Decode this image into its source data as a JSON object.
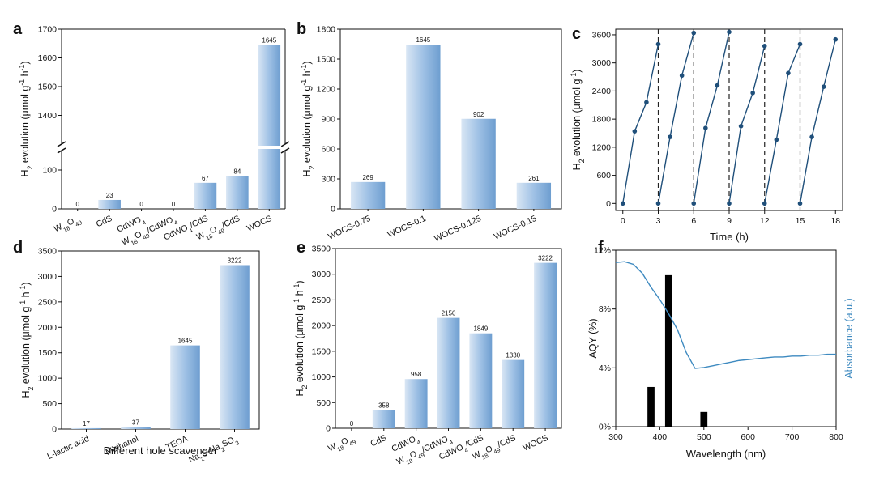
{
  "colors": {
    "bar_light": "#d9e6f4",
    "bar_mid": "#9fc1e5",
    "bar_dark": "#6e9ed0",
    "black_bar": "#000000",
    "absorbance_line": "#3e8ac0",
    "axis": "#111111"
  },
  "chart_data": [
    {
      "panel": "a",
      "type": "bar",
      "axis_break": true,
      "categories": [
        "W18O49",
        "CdS",
        "CdWO4",
        "W18O49/CdWO4",
        "CdWO4/CdS",
        "W18O49/CdS",
        "WOCS"
      ],
      "category_labels": [
        [
          "W",
          "18",
          "O",
          "49"
        ],
        [
          "CdS"
        ],
        [
          "CdWO",
          "4"
        ],
        [
          "W",
          "18",
          "O",
          "49",
          "/CdWO",
          "4"
        ],
        [
          "CdWO",
          "4",
          "/CdS"
        ],
        [
          "W",
          "18",
          "O",
          "49",
          "/CdS"
        ],
        [
          "WOCS"
        ]
      ],
      "values": [
        0,
        23,
        0,
        0,
        67,
        84,
        1645
      ],
      "value_labels": [
        "0",
        "23",
        "0",
        "0",
        "67",
        "84",
        "1645"
      ],
      "ylabel": [
        "H",
        "2",
        " evolution (μmol g",
        "-1",
        " h",
        "-1",
        ")"
      ],
      "ylim_lower": [
        0,
        150
      ],
      "ylim_upper": [
        1300,
        1700
      ],
      "yticks_lower": [
        0,
        100
      ],
      "yticks_upper": [
        1400,
        1500,
        1600,
        1700
      ]
    },
    {
      "panel": "b",
      "type": "bar",
      "categories": [
        "WOCS-0.75",
        "WOCS-0.1",
        "WOCS-0.125",
        "WOCS-0.15"
      ],
      "values": [
        269,
        1645,
        902,
        261
      ],
      "value_labels": [
        "269",
        "1645",
        "902",
        "261"
      ],
      "ylabel": [
        "H",
        "2",
        " evolution (μmol g",
        "-1",
        " h",
        "-1",
        ")"
      ],
      "ylim": [
        0,
        1800
      ],
      "yticks": [
        0,
        300,
        600,
        900,
        1200,
        1500,
        1800
      ]
    },
    {
      "panel": "c",
      "type": "line",
      "cycles": [
        {
          "x": [
            0,
            1,
            2,
            3
          ],
          "y": [
            0,
            1540,
            2160,
            3400
          ]
        },
        {
          "x": [
            3,
            4,
            5,
            6
          ],
          "y": [
            0,
            1420,
            2730,
            3640
          ]
        },
        {
          "x": [
            6,
            7,
            8,
            9
          ],
          "y": [
            0,
            1610,
            2520,
            3660
          ]
        },
        {
          "x": [
            9,
            10,
            11,
            12
          ],
          "y": [
            0,
            1650,
            2360,
            3360
          ]
        },
        {
          "x": [
            12,
            13,
            14,
            15
          ],
          "y": [
            0,
            1360,
            2780,
            3400
          ]
        },
        {
          "x": [
            15,
            16,
            17,
            18
          ],
          "y": [
            0,
            1420,
            2490,
            3500
          ]
        }
      ],
      "dashed_x": [
        3,
        6,
        9,
        12,
        15
      ],
      "xlabel": "Time (h)",
      "ylabel": [
        "H",
        "2",
        " evolution (μmol g",
        "-1",
        ")"
      ],
      "xlim": [
        -0.6,
        18.6
      ],
      "ylim": [
        -150,
        3720
      ],
      "xticks": [
        0,
        3,
        6,
        9,
        12,
        15,
        18
      ],
      "yticks": [
        0,
        600,
        1200,
        1800,
        2400,
        3000,
        3600
      ]
    },
    {
      "panel": "d",
      "type": "bar",
      "categories": [
        "L-lactic acid",
        "Methanol",
        "TEOA",
        "Na2S-Na2SO3"
      ],
      "category_labels": [
        [
          "L-lactic acid"
        ],
        [
          "Methanol"
        ],
        [
          "TEOA"
        ],
        [
          "Na",
          "2",
          "S-Na",
          "2",
          "SO",
          "3"
        ]
      ],
      "values": [
        17,
        37,
        1645,
        3222
      ],
      "value_labels": [
        "17",
        "37",
        "1645",
        "3222"
      ],
      "xlabel": "Different hole scavenger",
      "ylabel": [
        "H",
        "2",
        " evolution (μmol g",
        "-1",
        " h",
        "-1",
        ")"
      ],
      "ylim": [
        0,
        3500
      ],
      "yticks": [
        0,
        500,
        1000,
        1500,
        2000,
        2500,
        3000,
        3500
      ]
    },
    {
      "panel": "e",
      "type": "bar",
      "categories": [
        "W18O49",
        "CdS",
        "CdWO4",
        "W18O49/CdWO4",
        "CdWO4/CdS",
        "W18O49/CdS",
        "WOCS"
      ],
      "category_labels": [
        [
          "W",
          "18",
          "O",
          "49"
        ],
        [
          "CdS"
        ],
        [
          "CdWO",
          "4"
        ],
        [
          "W",
          "18",
          "O",
          "49",
          "/CdWO",
          "4"
        ],
        [
          "CdWO",
          "4",
          "/CdS"
        ],
        [
          "W",
          "18",
          "O",
          "49",
          "/CdS"
        ],
        [
          "WOCS"
        ]
      ],
      "values": [
        0,
        358,
        958,
        2150,
        1849,
        1330,
        3222
      ],
      "value_labels": [
        "0",
        "358",
        "958",
        "2150",
        "1849",
        "1330",
        "3222"
      ],
      "ylabel": [
        "H",
        "2",
        " evolution (μmol g",
        "-1",
        " h",
        "-1",
        ")"
      ],
      "ylim": [
        0,
        3500
      ],
      "yticks": [
        0,
        500,
        1000,
        1500,
        2000,
        2500,
        3000,
        3500
      ]
    },
    {
      "panel": "f",
      "type": "bar+line",
      "bar_x": [
        380,
        420,
        500
      ],
      "bar_values": [
        2.7,
        10.3,
        1.0
      ],
      "bar_width_nm": 16,
      "absorbance": {
        "x": [
          300,
          320,
          340,
          360,
          380,
          400,
          420,
          440,
          460,
          480,
          500,
          520,
          540,
          560,
          580,
          600,
          620,
          640,
          660,
          680,
          700,
          720,
          740,
          760,
          780,
          800
        ],
        "y": [
          0.93,
          0.935,
          0.92,
          0.87,
          0.79,
          0.72,
          0.64,
          0.55,
          0.42,
          0.33,
          0.335,
          0.345,
          0.355,
          0.365,
          0.375,
          0.38,
          0.385,
          0.39,
          0.395,
          0.395,
          0.4,
          0.4,
          0.405,
          0.405,
          0.41,
          0.41
        ]
      },
      "xlabel": "Wavelength (nm)",
      "ylabel": "AQY (%)",
      "ylabel_right": "Absorbance (a.u.)",
      "xlim": [
        300,
        800
      ],
      "ylim": [
        0,
        12
      ],
      "xticks": [
        300,
        400,
        500,
        600,
        700,
        800
      ],
      "yticks": [
        0,
        4,
        8,
        12
      ],
      "ytick_labels": [
        "0%",
        "4%",
        "8%",
        "12%"
      ]
    }
  ]
}
